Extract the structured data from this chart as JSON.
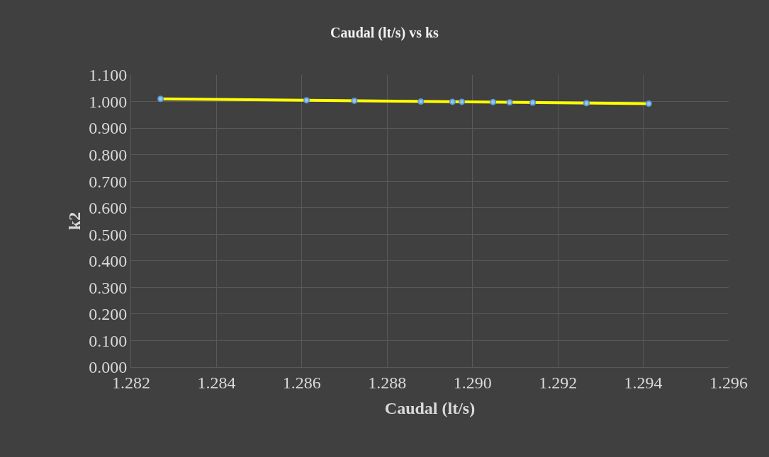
{
  "chart_data": {
    "type": "scatter",
    "title": "Caudal (lt/s) vs ks",
    "xlabel": "Caudal (lt/s)",
    "ylabel": "k2",
    "x": [
      1.28269,
      1.28611,
      1.28723,
      1.28879,
      1.28953,
      1.28975,
      1.29048,
      1.29087,
      1.29141,
      1.29267,
      1.29413
    ],
    "series": [
      {
        "color": "#9dc3e6",
        "marker": "circle",
        "values": [
          1.01,
          1.005,
          1.003,
          1.0,
          0.999,
          0.999,
          0.998,
          0.997,
          0.996,
          0.994,
          0.992
        ]
      },
      {
        "type": "line",
        "marker": "none",
        "color": "#ffff00",
        "x": [
          1.28269,
          1.29413
        ],
        "values": [
          1.01,
          0.992
        ]
      }
    ],
    "grid": true,
    "xlim": [
      1.282,
      1.296
    ],
    "xticks": [
      1.282,
      1.284,
      1.286,
      1.288,
      {
        "value": 1.29,
        "label": "1.290"
      },
      1.292,
      1.294,
      1.296
    ],
    "ylim": [
      0,
      1.1
    ],
    "yticks": [
      {
        "value": 0,
        "label": "0.000"
      },
      {
        "value": 0.1,
        "label": "0.100"
      },
      {
        "value": 0.2,
        "label": "0.200"
      },
      {
        "value": 0.3,
        "label": "0.300"
      },
      {
        "value": 0.4,
        "label": "0.400"
      },
      {
        "value": 0.5,
        "label": "0.500"
      },
      {
        "value": 0.6,
        "label": "0.600"
      },
      {
        "value": 0.7,
        "label": "0.700"
      },
      {
        "value": 0.8,
        "label": "0.800"
      },
      {
        "value": 0.9,
        "label": "0.900"
      },
      {
        "value": 1.0,
        "label": "1.000"
      },
      {
        "value": 1.1,
        "label": "1.100"
      }
    ]
  }
}
